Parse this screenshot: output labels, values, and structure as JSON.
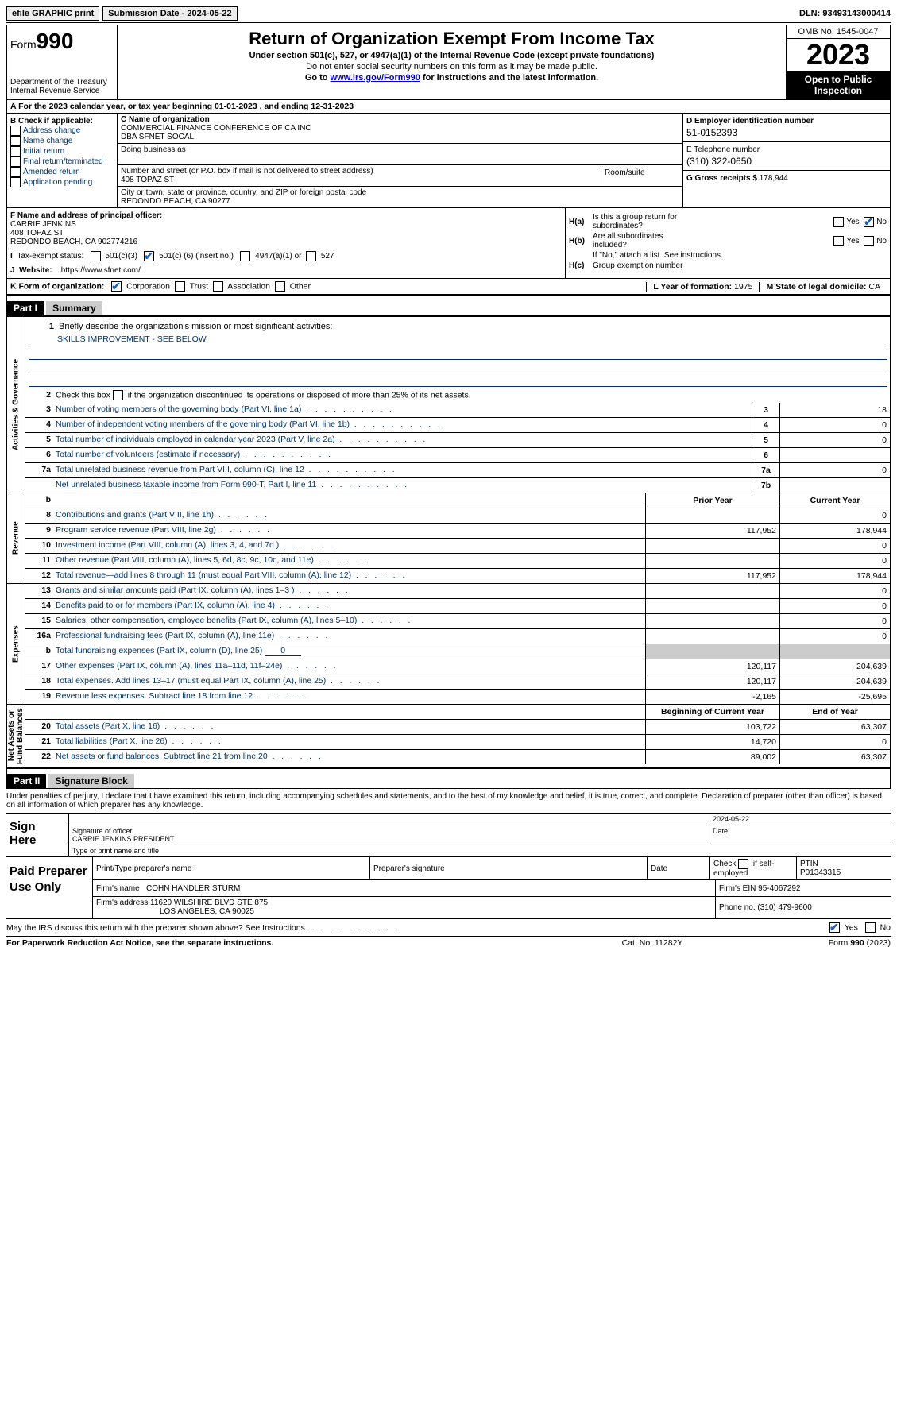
{
  "topbar": {
    "efile": "efile GRAPHIC print",
    "submission_label": "Submission Date - ",
    "submission_date": "2024-05-22",
    "dln_label": "DLN: ",
    "dln": "93493143000414"
  },
  "header": {
    "form_word": "Form",
    "form_num": "990",
    "dept1": "Department of the Treasury",
    "dept2": "Internal Revenue Service",
    "title": "Return of Organization Exempt From Income Tax",
    "sub1": "Under section 501(c), 527, or 4947(a)(1) of the Internal Revenue Code (except private foundations)",
    "sub2": "Do not enter social security numbers on this form as it may be made public.",
    "sub3_pre": "Go to ",
    "sub3_link": "www.irs.gov/Form990",
    "sub3_post": " for instructions and the latest information.",
    "omb": "OMB No. 1545-0047",
    "year": "2023",
    "open1": "Open to Public",
    "open2": "Inspection"
  },
  "row_a": {
    "text_pre": "A For the 2023 calendar year, or tax year beginning ",
    "begin": "01-01-2023",
    "mid": "  , and ending ",
    "end": "12-31-2023"
  },
  "col_b": {
    "label": "B Check if applicable:",
    "opts": [
      "Address change",
      "Name change",
      "Initial return",
      "Final return/terminated",
      "Amended return",
      "Application pending"
    ]
  },
  "col_c": {
    "name_lbl": "C Name of organization",
    "name1": "COMMERCIAL FINANCE CONFERENCE OF CA INC",
    "name2": "DBA SFNET SOCAL",
    "dba_lbl": "Doing business as",
    "addr_lbl": "Number and street (or P.O. box if mail is not delivered to street address)",
    "addr": "408 TOPAZ ST",
    "room_lbl": "Room/suite",
    "city_lbl": "City or town, state or province, country, and ZIP or foreign postal code",
    "city": "REDONDO BEACH, CA  90277"
  },
  "col_d": {
    "ein_lbl": "D Employer identification number",
    "ein": "51-0152393",
    "tel_lbl": "E Telephone number",
    "tel": "(310) 322-0650",
    "gross_lbl": "G Gross receipts $ ",
    "gross": "178,944"
  },
  "col_f": {
    "lbl": "F  Name and address of principal officer:",
    "l1": "CARRIE JENKINS",
    "l2": "408 TOPAZ ST",
    "l3": "REDONDO BEACH, CA  902774216"
  },
  "col_h": {
    "ha_lbl": "H(a)",
    "ha_txt1": "Is this a group return for",
    "ha_txt2": "subordinates?",
    "hb_lbl": "H(b)",
    "hb_txt1": "Are all subordinates",
    "hb_txt2": "included?",
    "yes": "Yes",
    "no": "No",
    "hb_note": "If \"No,\" attach a list. See instructions.",
    "hc_lbl": "H(c)",
    "hc_txt": "Group exemption number  "
  },
  "row_i": {
    "lbl": "I  Tax-exempt status:",
    "o1": "501(c)(3)",
    "o2a": "501(c) (",
    "o2b": "6",
    "o2c": ") (insert no.)",
    "o3": "4947(a)(1) or",
    "o4": "527"
  },
  "row_j": {
    "lbl": "J  Website: ",
    "url": "https://www.sfnet.com/"
  },
  "row_k": {
    "lbl": "K Form of organization:",
    "opts": [
      "Corporation",
      "Trust",
      "Association",
      "Other"
    ],
    "l_lbl": "L Year of formation: ",
    "l_val": "1975",
    "m_lbl": "M State of legal domicile: ",
    "m_val": "CA"
  },
  "parts": {
    "p1": "Part I",
    "p1_title": "Summary",
    "p2": "Part II",
    "p2_title": "Signature Block"
  },
  "summary": {
    "sec_labels": {
      "ag": "Activities & Governance",
      "rev": "Revenue",
      "exp": "Expenses",
      "na": "Net Assets or\nFund Balances"
    },
    "l1_lbl": "Briefly describe the organization's mission or most significant activities:",
    "l1_val": "SKILLS IMPROVEMENT - SEE BELOW",
    "l2": "Check this box       if the organization discontinued its operations or disposed of more than 25% of its net assets.",
    "lines_ag": [
      {
        "n": "3",
        "t": "Number of voting members of the governing body (Part VI, line 1a)",
        "box": "3",
        "v": "18"
      },
      {
        "n": "4",
        "t": "Number of independent voting members of the governing body (Part VI, line 1b)",
        "box": "4",
        "v": "0"
      },
      {
        "n": "5",
        "t": "Total number of individuals employed in calendar year 2023 (Part V, line 2a)",
        "box": "5",
        "v": "0"
      },
      {
        "n": "6",
        "t": "Total number of volunteers (estimate if necessary)",
        "box": "6",
        "v": ""
      },
      {
        "n": "7a",
        "t": "Total unrelated business revenue from Part VIII, column (C), line 12",
        "box": "7a",
        "v": "0"
      },
      {
        "n": "",
        "t": "Net unrelated business taxable income from Form 990-T, Part I, line 11",
        "box": "7b",
        "v": ""
      }
    ],
    "hdr_py": "Prior Year",
    "hdr_cy": "Current Year",
    "lines_rev": [
      {
        "n": "8",
        "t": "Contributions and grants (Part VIII, line 1h)",
        "py": "",
        "cy": "0"
      },
      {
        "n": "9",
        "t": "Program service revenue (Part VIII, line 2g)",
        "py": "117,952",
        "cy": "178,944"
      },
      {
        "n": "10",
        "t": "Investment income (Part VIII, column (A), lines 3, 4, and 7d )",
        "py": "",
        "cy": "0"
      },
      {
        "n": "11",
        "t": "Other revenue (Part VIII, column (A), lines 5, 6d, 8c, 9c, 10c, and 11e)",
        "py": "",
        "cy": "0"
      },
      {
        "n": "12",
        "t": "Total revenue—add lines 8 through 11 (must equal Part VIII, column (A), line 12)",
        "py": "117,952",
        "cy": "178,944"
      }
    ],
    "lines_exp": [
      {
        "n": "13",
        "t": "Grants and similar amounts paid (Part IX, column (A), lines 1–3 )",
        "py": "",
        "cy": "0"
      },
      {
        "n": "14",
        "t": "Benefits paid to or for members (Part IX, column (A), line 4)",
        "py": "",
        "cy": "0"
      },
      {
        "n": "15",
        "t": "Salaries, other compensation, employee benefits (Part IX, column (A), lines 5–10)",
        "py": "",
        "cy": "0"
      },
      {
        "n": "16a",
        "t": "Professional fundraising fees (Part IX, column (A), line 11e)",
        "py": "",
        "cy": "0"
      }
    ],
    "l16b_pre": "Total fundraising expenses (Part IX, column (D), line 25) ",
    "l16b_val": "0",
    "lines_exp2": [
      {
        "n": "17",
        "t": "Other expenses (Part IX, column (A), lines 11a–11d, 11f–24e)",
        "py": "120,117",
        "cy": "204,639"
      },
      {
        "n": "18",
        "t": "Total expenses. Add lines 13–17 (must equal Part IX, column (A), line 25)",
        "py": "120,117",
        "cy": "204,639"
      },
      {
        "n": "19",
        "t": "Revenue less expenses. Subtract line 18 from line 12",
        "py": "-2,165",
        "cy": "-25,695"
      }
    ],
    "hdr_bcy": "Beginning of Current Year",
    "hdr_eoy": "End of Year",
    "lines_na": [
      {
        "n": "20",
        "t": "Total assets (Part X, line 16)",
        "py": "103,722",
        "cy": "63,307"
      },
      {
        "n": "21",
        "t": "Total liabilities (Part X, line 26)",
        "py": "14,720",
        "cy": "0"
      },
      {
        "n": "22",
        "t": "Net assets or fund balances. Subtract line 21 from line 20",
        "py": "89,002",
        "cy": "63,307"
      }
    ]
  },
  "sig": {
    "declare": "Under penalties of perjury, I declare that I have examined this return, including accompanying schedules and statements, and to the best of my knowledge and belief, it is true, correct, and complete. Declaration of preparer (other than officer) is based on all information of which preparer has any knowledge.",
    "sign_here": "Sign Here",
    "date_top": "2024-05-22",
    "sig_officer_lbl": "Signature of officer",
    "officer_name": "CARRIE JENKINS  PRESIDENT",
    "type_name_lbl": "Type or print name and title",
    "date_lbl": "Date"
  },
  "prep": {
    "title": "Paid Preparer Use Only",
    "r1": {
      "c1_lbl": "Print/Type preparer's name",
      "c2_lbl": "Preparer's signature",
      "c3_lbl": "Date",
      "c4_lbl_pre": "Check ",
      "c4_lbl_post": " if self-employed",
      "c5_lbl": "PTIN",
      "c5_val": "P01343315"
    },
    "r2": {
      "firm_lbl": "Firm's name      ",
      "firm_val": "COHN HANDLER STURM",
      "ein_lbl": "Firm's EIN  ",
      "ein_val": "95-4067292"
    },
    "r3": {
      "addr_lbl": "Firm's address  ",
      "addr1": "11620 WILSHIRE BLVD STE 875",
      "addr2": "LOS ANGELES, CA  90025",
      "phone_lbl": "Phone no. ",
      "phone_val": "(310) 479-9600"
    }
  },
  "may_irs": {
    "txt": "May the IRS discuss this return with the preparer shown above? See Instructions.",
    "yes": "Yes",
    "no": "No"
  },
  "footer": {
    "l": "For Paperwork Reduction Act Notice, see the separate instructions.",
    "m": "Cat. No. 11282Y",
    "r1": "Form ",
    "r2": "990",
    "r3": " (2023)"
  }
}
